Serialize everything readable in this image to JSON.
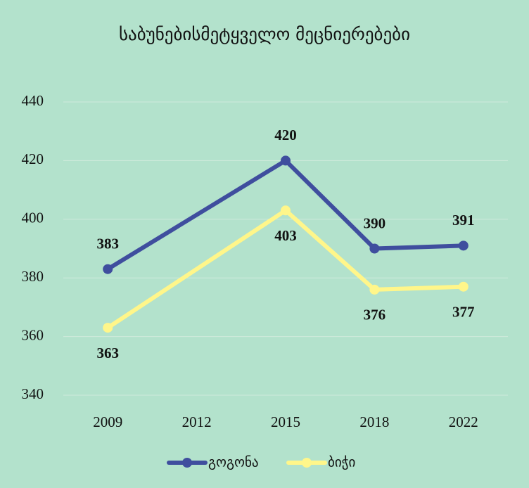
{
  "chart_data": {
    "type": "line",
    "title": "საბუნებისმეტყველო მეცნიერებები",
    "categories": [
      "2009",
      "2012",
      "2015",
      "2018",
      "2022"
    ],
    "series": [
      {
        "name": "გოგონა",
        "color": "#3f4e9e",
        "values": [
          383,
          null,
          420,
          390,
          391
        ]
      },
      {
        "name": "ბიჭი",
        "color": "#fff68a",
        "values": [
          363,
          null,
          403,
          376,
          377
        ]
      }
    ],
    "ylim": [
      340,
      440
    ],
    "yticks": [
      340,
      360,
      380,
      400,
      420,
      440
    ],
    "grid": true,
    "legend": "bottom"
  }
}
